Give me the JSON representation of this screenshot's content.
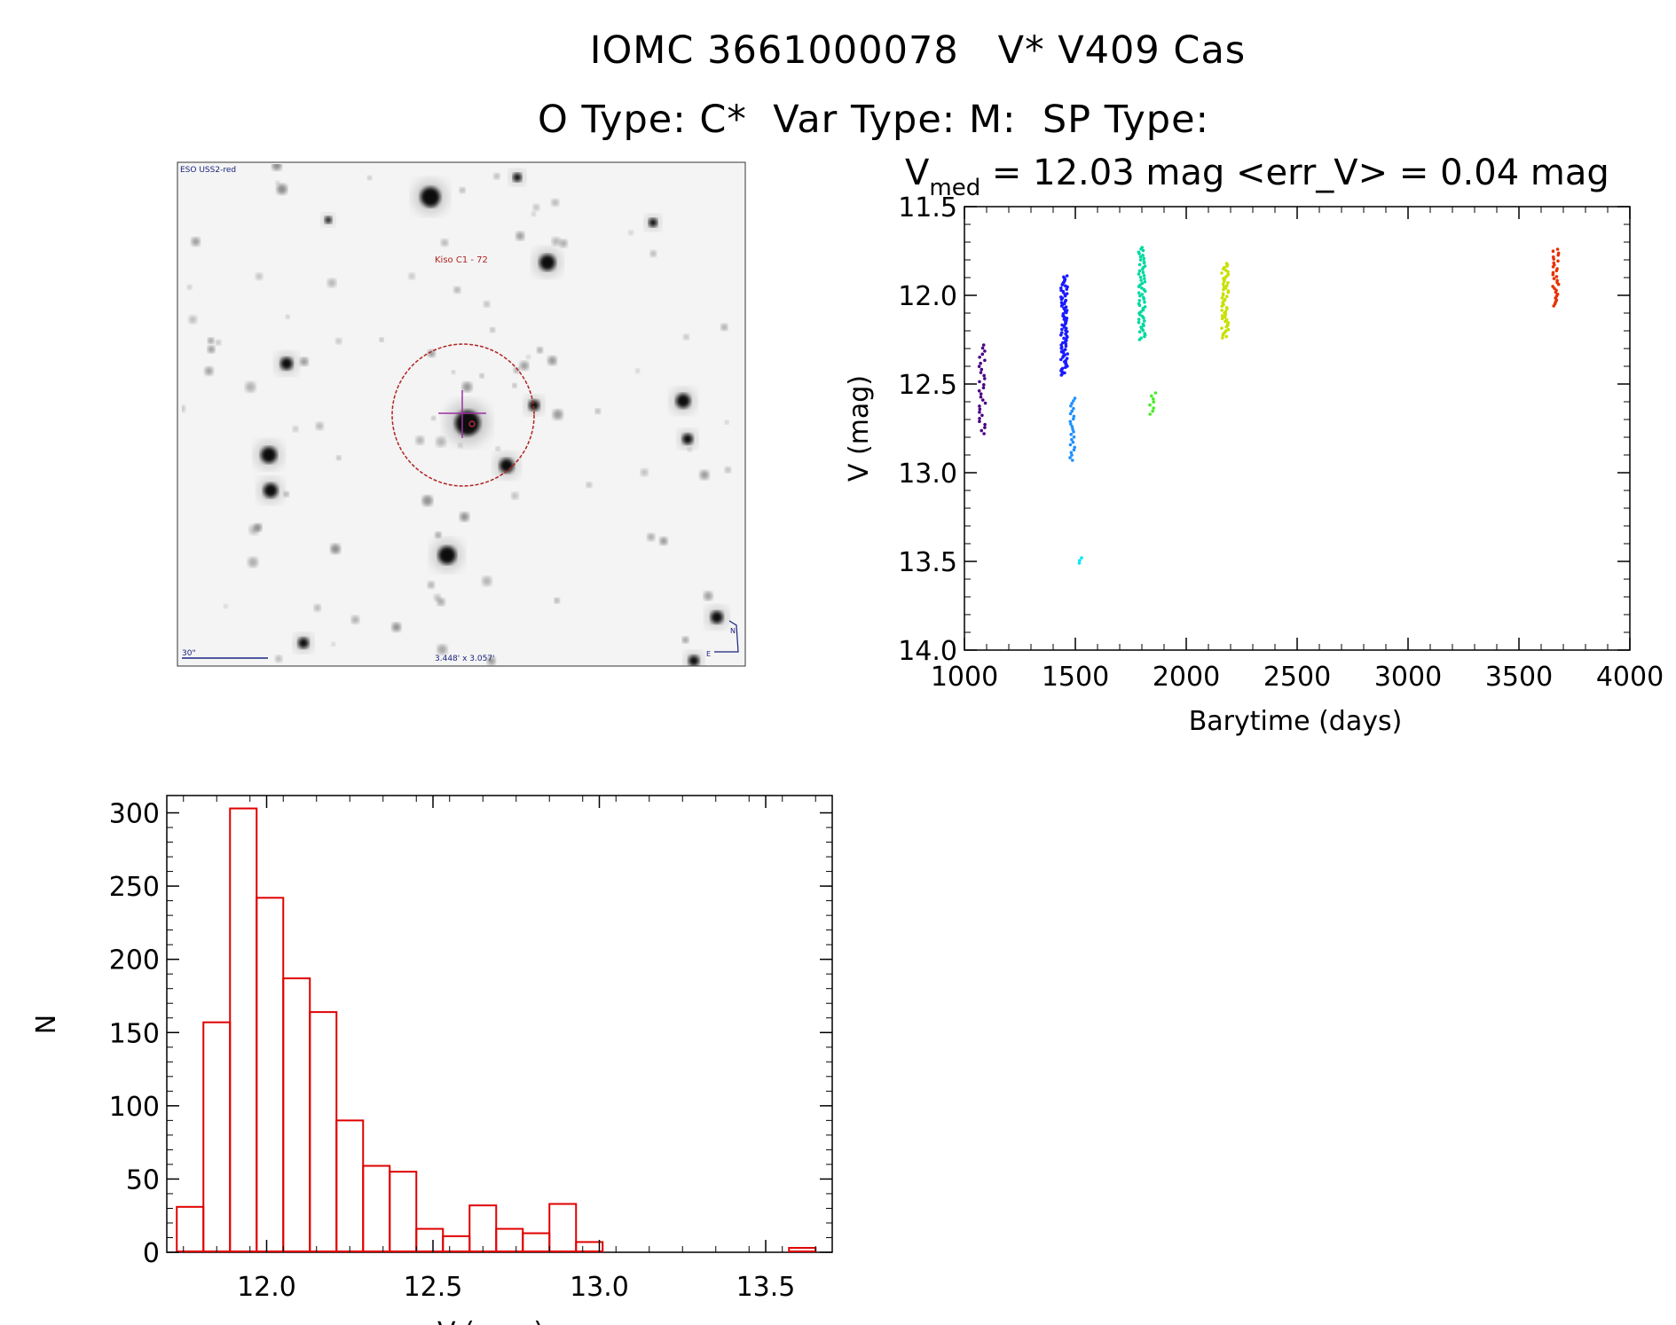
{
  "header": {
    "title_line1": "IOMC 3661000078   V* V409 Cas",
    "title_line2": "O Type: C*  Var Type: M:  SP Type:"
  },
  "image_panel": {
    "survey_label": "ESO USS2-red",
    "object_label": "Kiso C1 - 72",
    "scale_label": "30\"",
    "fov_label": "3.448' x 3.057'",
    "compass_n": "N",
    "compass_e": "E",
    "colors": {
      "circle": "#b22222",
      "crosshair": "#9b30a0",
      "labels": "#1a237e"
    }
  },
  "chart_data": [
    {
      "type": "scatter",
      "title_prefix": "V",
      "title_subscript": "med",
      "title_rest": " = 12.03 mag <err_V> = 0.04 mag",
      "xlabel": "Barytime (days)",
      "ylabel": "V (mag)",
      "xlim": [
        1000,
        4000
      ],
      "ylim": [
        14.0,
        11.5
      ],
      "xticks": [
        "1000",
        "1500",
        "2000",
        "2500",
        "3000",
        "3500",
        "4000"
      ],
      "yticks": [
        "11.5",
        "12.0",
        "12.5",
        "13.0",
        "13.5",
        "14.0"
      ],
      "groups": [
        {
          "x": 1080,
          "y_min": 12.28,
          "y_max": 12.78,
          "n": 30,
          "color": "#4b0082"
        },
        {
          "x": 1450,
          "y_min": 11.89,
          "y_max": 12.45,
          "n": 90,
          "color": "#1a1aff"
        },
        {
          "x": 1490,
          "y_min": 12.58,
          "y_max": 12.93,
          "n": 25,
          "color": "#1e90ff"
        },
        {
          "x": 1530,
          "y_min": 13.48,
          "y_max": 13.51,
          "n": 3,
          "color": "#00e5ff"
        },
        {
          "x": 1800,
          "y_min": 11.73,
          "y_max": 12.25,
          "n": 60,
          "color": "#00d9a0"
        },
        {
          "x": 1850,
          "y_min": 12.55,
          "y_max": 12.67,
          "n": 8,
          "color": "#44ee22"
        },
        {
          "x": 2175,
          "y_min": 11.82,
          "y_max": 12.24,
          "n": 55,
          "color": "#c8e000"
        },
        {
          "x": 3665,
          "y_min": 11.74,
          "y_max": 12.06,
          "n": 30,
          "color": "#e83000"
        }
      ]
    },
    {
      "type": "bar",
      "xlabel": "V (mag)",
      "ylabel": "N",
      "xlim": [
        11.7,
        13.7
      ],
      "ylim": [
        0,
        310
      ],
      "xticks": [
        "12.0",
        "12.5",
        "13.0",
        "13.5"
      ],
      "yticks": [
        "0",
        "50",
        "100",
        "150",
        "200",
        "250",
        "300"
      ],
      "bin_start": 11.73,
      "bin_width": 0.08,
      "values": [
        31,
        157,
        303,
        242,
        187,
        164,
        90,
        59,
        55,
        16,
        11,
        32,
        16,
        13,
        33,
        7,
        0,
        0,
        0,
        0,
        0,
        0,
        0,
        3
      ],
      "color": "#e00000"
    }
  ]
}
